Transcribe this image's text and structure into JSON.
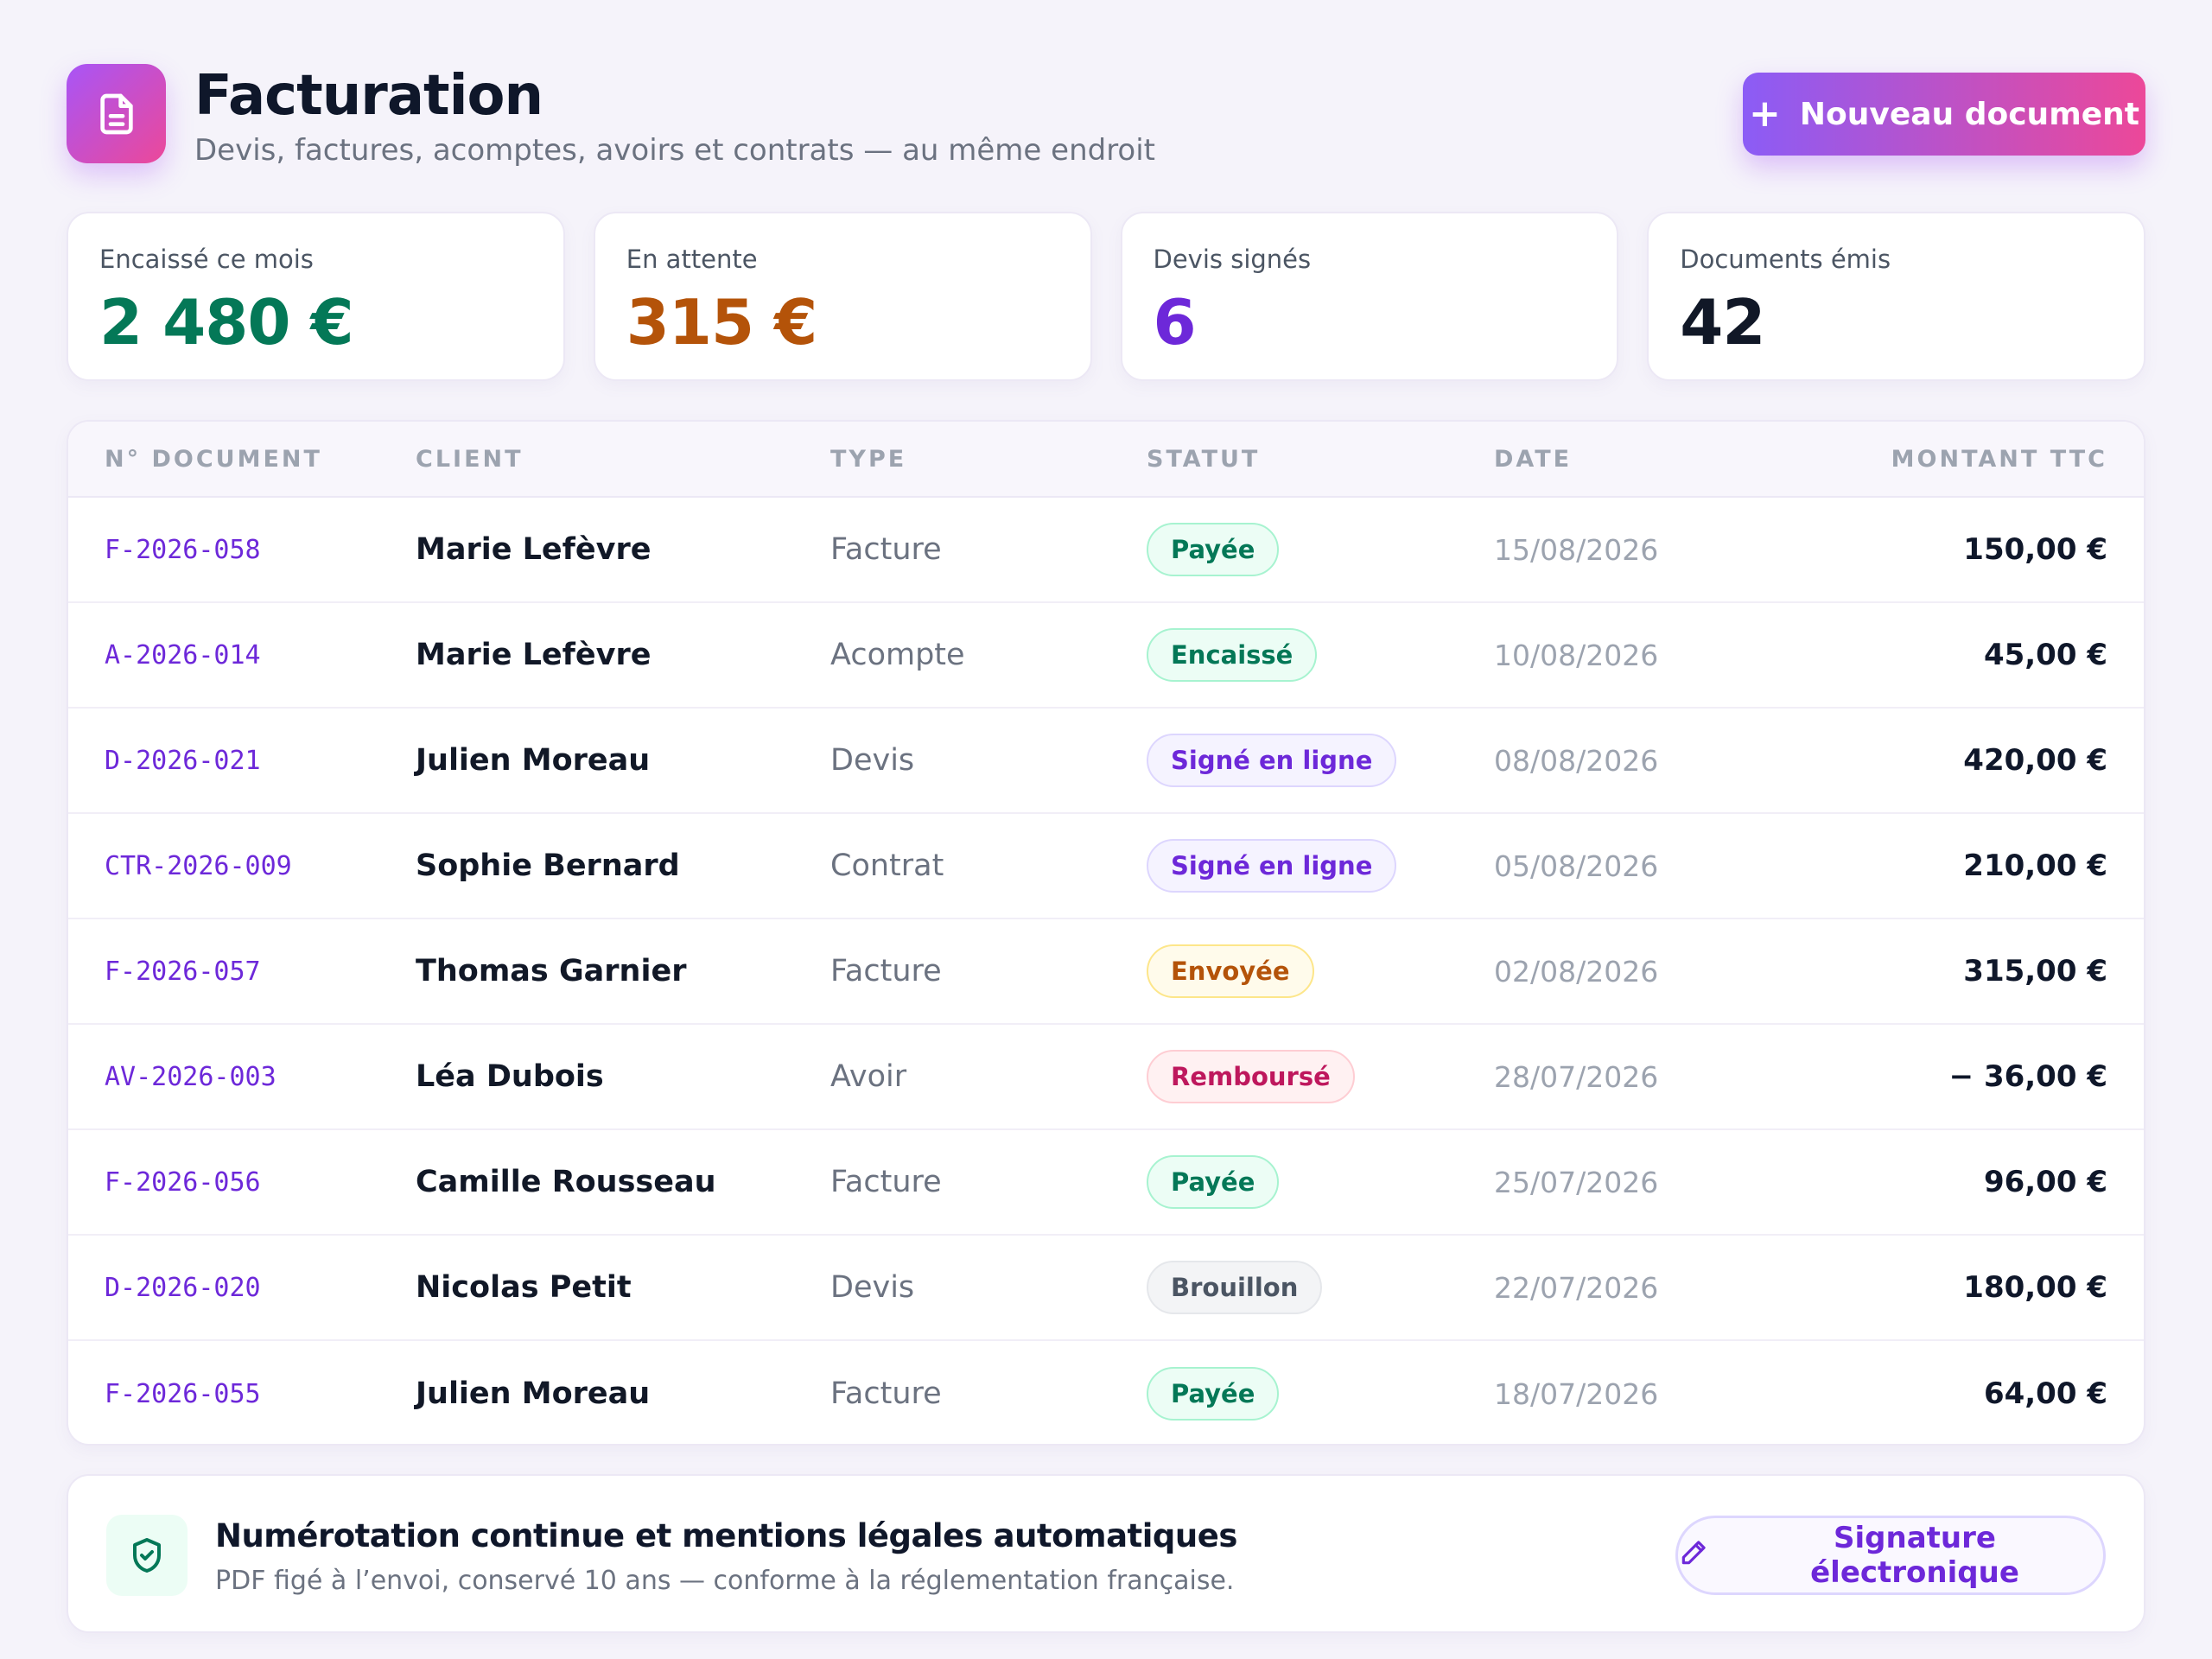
{
  "header": {
    "title": "Facturation",
    "subtitle": "Devis, factures, acomptes, avoirs et contrats — au même endroit",
    "icon": "document-icon",
    "new_button_label": "Nouveau document"
  },
  "stats": [
    {
      "label": "Encaissé ce mois",
      "value": "2 480 €",
      "color": "#047857"
    },
    {
      "label": "En attente",
      "value": "315 €",
      "color": "#b45309"
    },
    {
      "label": "Devis signés",
      "value": "6",
      "color": "#6d28d9"
    },
    {
      "label": "Documents émis",
      "value": "42",
      "color": "#111827"
    }
  ],
  "table": {
    "columns": [
      "N° DOCUMENT",
      "CLIENT",
      "TYPE",
      "STATUT",
      "DATE",
      "MONTANT TTC"
    ],
    "rows": [
      {
        "number": "F-2026-058",
        "client": "Marie Lefèvre",
        "type": "Facture",
        "status": "Payée",
        "status_color": "green",
        "date": "15/08/2026",
        "amount": "150,00 €"
      },
      {
        "number": "A-2026-014",
        "client": "Marie Lefèvre",
        "type": "Acompte",
        "status": "Encaissé",
        "status_color": "green",
        "date": "10/08/2026",
        "amount": "45,00 €"
      },
      {
        "number": "D-2026-021",
        "client": "Julien Moreau",
        "type": "Devis",
        "status": "Signé en ligne",
        "status_color": "violet",
        "date": "08/08/2026",
        "amount": "420,00 €"
      },
      {
        "number": "CTR-2026-009",
        "client": "Sophie Bernard",
        "type": "Contrat",
        "status": "Signé en ligne",
        "status_color": "violet",
        "date": "05/08/2026",
        "amount": "210,00 €"
      },
      {
        "number": "F-2026-057",
        "client": "Thomas Garnier",
        "type": "Facture",
        "status": "Envoyée",
        "status_color": "amber",
        "date": "02/08/2026",
        "amount": "315,00 €"
      },
      {
        "number": "AV-2026-003",
        "client": "Léa Dubois",
        "type": "Avoir",
        "status": "Remboursé",
        "status_color": "rose",
        "date": "28/07/2026",
        "amount": "− 36,00 €"
      },
      {
        "number": "F-2026-056",
        "client": "Camille Rousseau",
        "type": "Facture",
        "status": "Payée",
        "status_color": "green",
        "date": "25/07/2026",
        "amount": "96,00 €"
      },
      {
        "number": "D-2026-020",
        "client": "Nicolas Petit",
        "type": "Devis",
        "status": "Brouillon",
        "status_color": "gray",
        "date": "22/07/2026",
        "amount": "180,00 €"
      },
      {
        "number": "F-2026-055",
        "client": "Julien Moreau",
        "type": "Facture",
        "status": "Payée",
        "status_color": "green",
        "date": "18/07/2026",
        "amount": "64,00 €"
      }
    ]
  },
  "footer": {
    "icon": "shield-check-icon",
    "title": "Numérotation continue et mentions légales automatiques",
    "subtitle": "PDF figé à l’envoi, conservé 10 ans — conforme à la réglementation française.",
    "sign_button_label": "Signature électronique",
    "sign_button_icon": "pen-icon"
  }
}
